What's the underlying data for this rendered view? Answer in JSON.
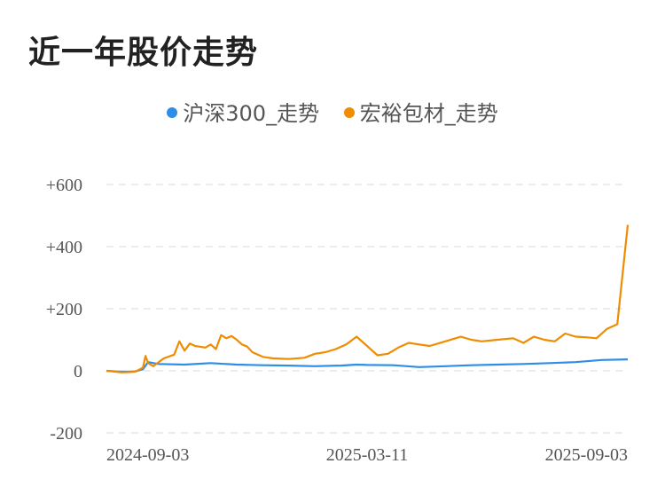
{
  "title": "近一年股价走势",
  "colors": {
    "hs300": "#2e8de6",
    "company": "#f08c00",
    "grid": "#e5e5e5"
  },
  "chart_data": {
    "type": "line",
    "title": "近一年股价走势",
    "legend_position": "top-center",
    "grid": true,
    "ylim": [
      -200,
      600
    ],
    "yticks": [
      "+600",
      "+400",
      "+200",
      "0",
      "-200"
    ],
    "ytick_values": [
      600,
      400,
      200,
      0,
      -200
    ],
    "xtick_labels": [
      "2024-09-03",
      "2025-03-11",
      "2025-09-03"
    ],
    "xtick_positions": [
      0,
      0.5,
      1
    ],
    "series": [
      {
        "name": "沪深300_走势",
        "color": "#2e8de6",
        "x": [
          0,
          0.03,
          0.055,
          0.07,
          0.08,
          0.1,
          0.15,
          0.2,
          0.25,
          0.3,
          0.35,
          0.4,
          0.45,
          0.48,
          0.5,
          0.55,
          0.6,
          0.65,
          0.7,
          0.75,
          0.8,
          0.85,
          0.9,
          0.95,
          1
        ],
        "y": [
          0,
          -3,
          -2,
          5,
          28,
          22,
          20,
          25,
          20,
          18,
          17,
          15,
          17,
          20,
          19,
          18,
          12,
          15,
          18,
          20,
          22,
          25,
          28,
          35,
          37
        ]
      },
      {
        "name": "宏裕包材_走势",
        "color": "#f08c00",
        "x": [
          0,
          0.03,
          0.055,
          0.07,
          0.075,
          0.08,
          0.09,
          0.11,
          0.13,
          0.14,
          0.15,
          0.16,
          0.17,
          0.19,
          0.2,
          0.21,
          0.22,
          0.23,
          0.24,
          0.25,
          0.26,
          0.27,
          0.28,
          0.3,
          0.32,
          0.35,
          0.38,
          0.4,
          0.42,
          0.44,
          0.46,
          0.48,
          0.5,
          0.51,
          0.52,
          0.54,
          0.56,
          0.58,
          0.6,
          0.62,
          0.65,
          0.68,
          0.7,
          0.72,
          0.75,
          0.78,
          0.8,
          0.82,
          0.84,
          0.86,
          0.88,
          0.9,
          0.92,
          0.94,
          0.96,
          0.98,
          1
        ],
        "y": [
          0,
          -5,
          -3,
          10,
          48,
          25,
          15,
          40,
          52,
          95,
          65,
          88,
          80,
          75,
          85,
          70,
          115,
          105,
          112,
          100,
          85,
          78,
          60,
          45,
          40,
          38,
          42,
          55,
          60,
          70,
          85,
          110,
          80,
          65,
          50,
          55,
          75,
          90,
          85,
          80,
          95,
          110,
          100,
          95,
          100,
          105,
          90,
          110,
          100,
          95,
          120,
          110,
          108,
          105,
          135,
          150,
          470
        ]
      }
    ]
  }
}
